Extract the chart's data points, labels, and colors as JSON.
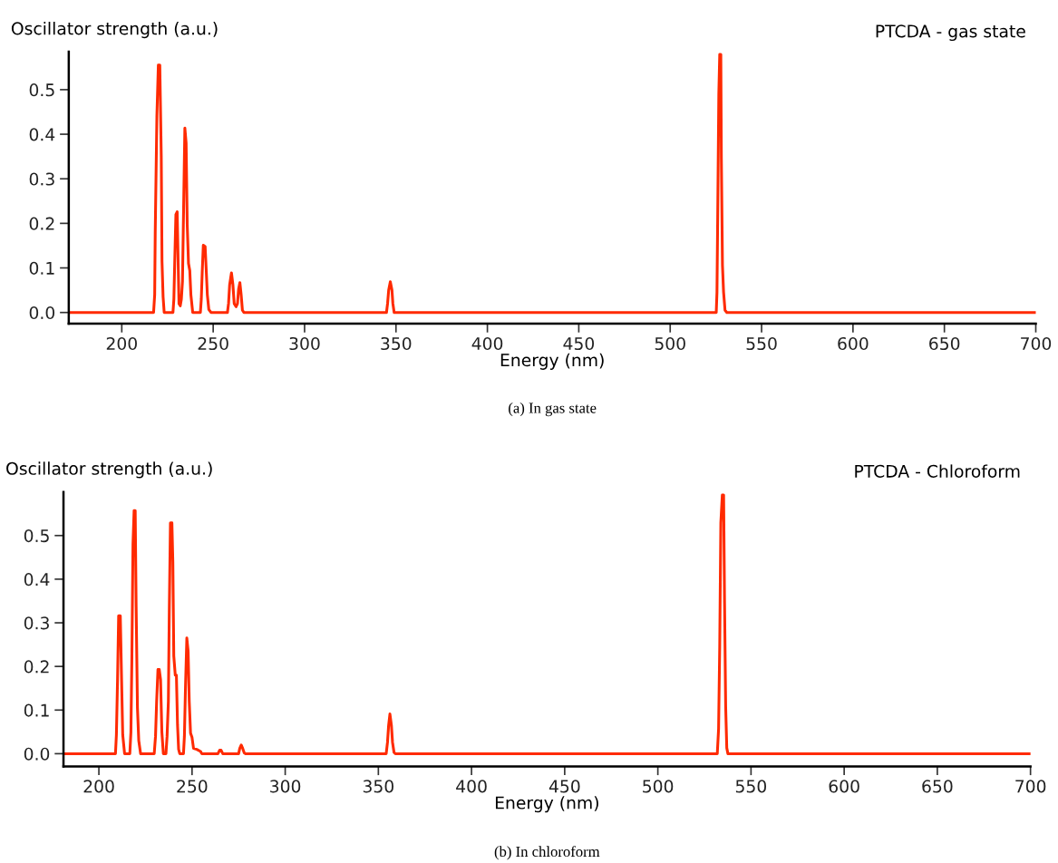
{
  "chart_data": [
    {
      "type": "line",
      "title": "PTCDA - gas state",
      "xlabel": "Energy (nm)",
      "ylabel": "Oscillator strength (a.u.)",
      "annotations": [
        "(a) In gas state"
      ],
      "x": [
        171,
        217.4,
        218.0,
        218.3,
        219.2,
        220.0,
        220.8,
        221.6,
        222.0,
        222.6,
        223.2,
        228.0,
        228.5,
        229.0,
        229.6,
        230.3,
        230.8,
        231.3,
        232.0,
        232.6,
        233.2,
        233.8,
        234.5,
        235.2,
        235.8,
        236.5,
        237.2,
        237.8,
        238.8,
        243.0,
        243.5,
        244.0,
        244.6,
        245.6,
        246.2,
        246.8,
        247.6,
        248.8,
        257.8,
        258.4,
        259.0,
        260.0,
        260.8,
        261.5,
        262.5,
        263.3,
        263.9,
        264.6,
        265.3,
        266.0,
        266.8,
        344.8,
        345.4,
        346.0,
        346.9,
        347.8,
        348.3,
        349.0,
        525.2,
        525.6,
        526.0,
        526.6,
        527.1,
        527.7,
        528.0,
        528.6,
        529.2,
        530.0,
        531.0,
        700
      ],
      "series": [
        {
          "color": "#ff2a00",
          "values": [
            0,
            0,
            0.04,
            0.18,
            0.44,
            0.555,
            0.555,
            0.35,
            0.115,
            0.035,
            0,
            0,
            0.03,
            0.12,
            0.22,
            0.226,
            0.12,
            0.02,
            0.015,
            0.03,
            0.07,
            0.228,
            0.414,
            0.38,
            0.197,
            0.11,
            0.094,
            0.04,
            0,
            0,
            0.03,
            0.09,
            0.151,
            0.148,
            0.095,
            0.04,
            0.007,
            0,
            0,
            0.02,
            0.062,
            0.089,
            0.062,
            0.02,
            0.013,
            0.02,
            0.052,
            0.067,
            0.04,
            0.005,
            0,
            0,
            0.02,
            0.05,
            0.069,
            0.05,
            0.02,
            0,
            0,
            0.046,
            0.215,
            0.49,
            0.579,
            0.579,
            0.345,
            0.106,
            0.046,
            0.005,
            0,
            0
          ]
        }
      ],
      "xlim": [
        171,
        700
      ],
      "xticks": [
        200,
        250,
        300,
        350,
        400,
        450,
        500,
        550,
        600,
        650,
        700
      ],
      "ylim": [
        -0.025,
        0.585
      ],
      "yticks": [
        {
          "value": 0,
          "label": "0.0"
        },
        0.1,
        0.2,
        0.3,
        0.4,
        0.5
      ],
      "grid": false
    },
    {
      "type": "line",
      "title": "PTCDA - Chloroform",
      "xlabel": "Energy (nm)",
      "ylabel": "Oscillator strength (a.u.)",
      "annotations": [
        "(b) In chloroform"
      ],
      "x": [
        181,
        208.9,
        209.4,
        210.0,
        210.6,
        211.5,
        212.2,
        212.8,
        213.8,
        216.6,
        217.2,
        217.7,
        218.3,
        218.9,
        219.5,
        220.0,
        220.7,
        221.4,
        222.4,
        229.7,
        230.4,
        231.0,
        231.7,
        232.4,
        233.1,
        233.8,
        234.6,
        236.0,
        236.6,
        237.3,
        237.8,
        238.4,
        239.2,
        239.7,
        240.2,
        241.0,
        241.6,
        242.2,
        242.8,
        243.4,
        245.4,
        245.9,
        246.5,
        247.2,
        247.9,
        248.5,
        249.2,
        250.0,
        250.8,
        252.5,
        254.6,
        255.2,
        263.9,
        264.8,
        265.6,
        266.5,
        275.0,
        275.6,
        276.4,
        277.2,
        278.0,
        278.7,
        354.2,
        354.9,
        355.5,
        356.2,
        357.0,
        357.6,
        358.4,
        359.1,
        531.9,
        532.6,
        533.2,
        533.8,
        534.6,
        535.3,
        535.8,
        536.4,
        537.0,
        537.6,
        700
      ],
      "series": [
        {
          "color": "#ff2a00",
          "values": [
            0,
            0,
            0.043,
            0.166,
            0.316,
            0.316,
            0.166,
            0.043,
            0,
            0,
            0.05,
            0.217,
            0.48,
            0.557,
            0.557,
            0.337,
            0.105,
            0.03,
            0,
            0,
            0.04,
            0.12,
            0.193,
            0.193,
            0.17,
            0.05,
            0,
            0,
            0.04,
            0.12,
            0.333,
            0.529,
            0.529,
            0.44,
            0.224,
            0.18,
            0.18,
            0.067,
            0.01,
            0,
            0,
            0.04,
            0.156,
            0.265,
            0.235,
            0.12,
            0.047,
            0.037,
            0.012,
            0.01,
            0.005,
            0,
            0,
            0.008,
            0.008,
            0,
            0,
            0.012,
            0.02,
            0.012,
            0.002,
            0,
            0,
            0.026,
            0.065,
            0.091,
            0.065,
            0.026,
            0.003,
            0,
            0,
            0.057,
            0.245,
            0.529,
            0.593,
            0.593,
            0.347,
            0.108,
            0.013,
            0,
            0
          ]
        }
      ],
      "xlim": [
        181,
        700
      ],
      "xticks": [
        200,
        250,
        300,
        350,
        400,
        450,
        500,
        550,
        600,
        650,
        700
      ],
      "ylim": [
        -0.029,
        0.6
      ],
      "yticks": [
        {
          "value": 0,
          "label": "0.0"
        },
        0.1,
        0.2,
        0.3,
        0.4,
        0.5
      ],
      "grid": false
    }
  ]
}
